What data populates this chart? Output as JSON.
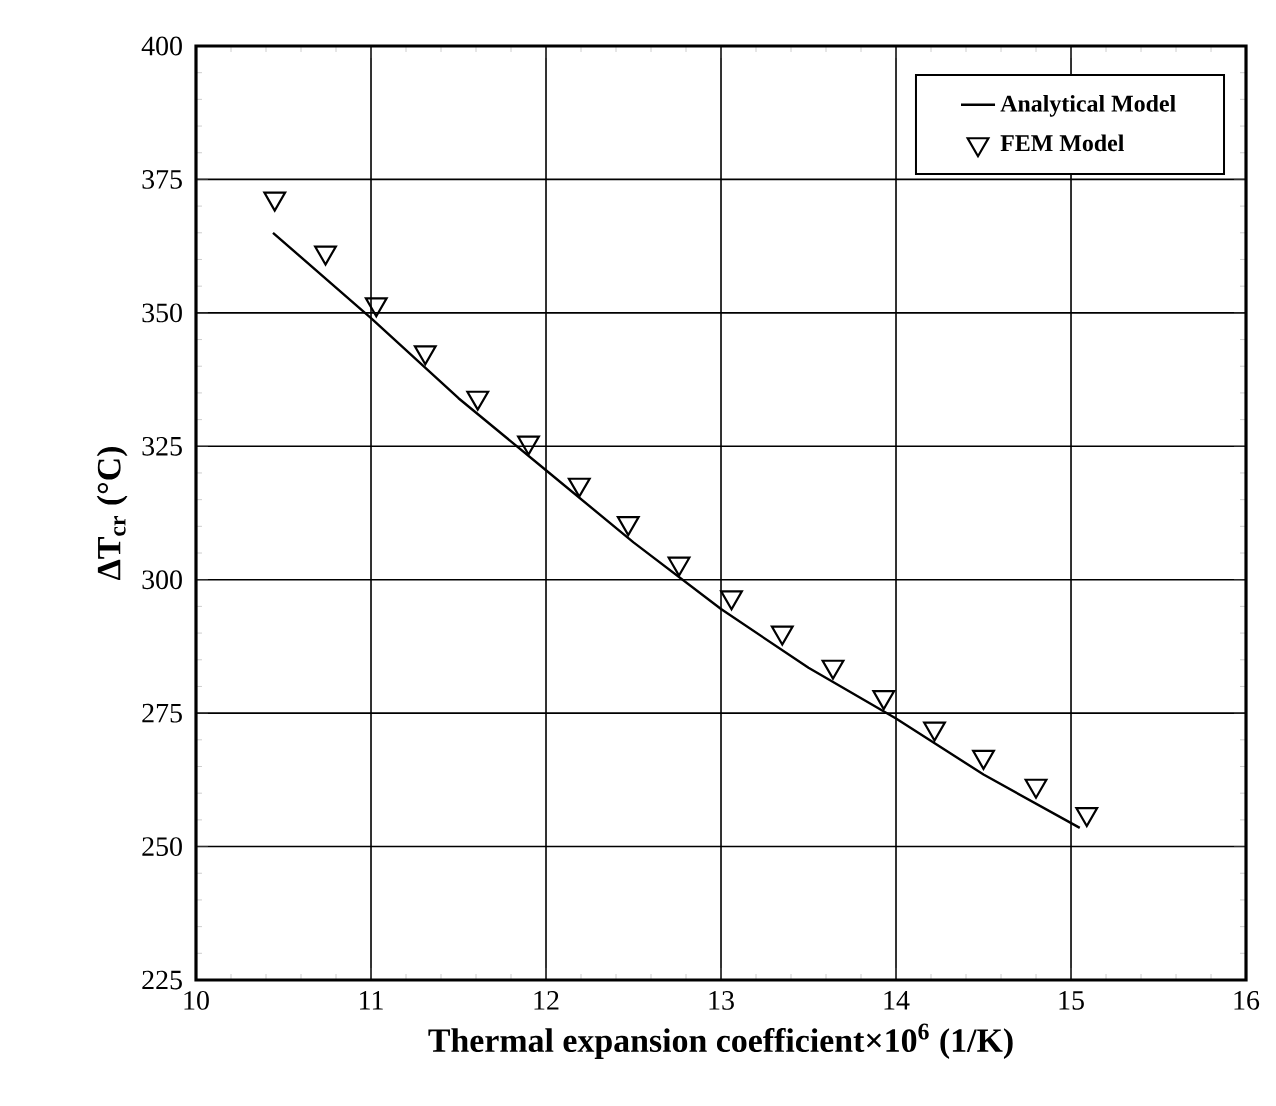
{
  "chart_data": {
    "type": "line",
    "xlabel": "Thermal expansion coefficient×10$^{6}$ (1/K)",
    "ylabel": "ΔT$_{cr}$ (°C)",
    "xlim": [
      10,
      16
    ],
    "ylim": [
      225,
      400
    ],
    "xticks": [
      10,
      11,
      12,
      13,
      14,
      15,
      16
    ],
    "yticks": [
      225,
      250,
      275,
      300,
      325,
      350,
      375,
      400
    ],
    "grid": true,
    "legend": "top right",
    "series": [
      {
        "name": "Analytical Model",
        "color": "#000000",
        "marker": "none",
        "line_style": "solid",
        "x": [
          10.44,
          11,
          11.5,
          12,
          12.5,
          13,
          13.5,
          14,
          14.5,
          15.05
        ],
        "values": [
          365,
          349,
          334,
          320.5,
          307,
          294.5,
          283.5,
          274,
          263.5,
          253.5
        ]
      },
      {
        "name": "FEM Model",
        "type": "scatter",
        "color": "#000000",
        "marker": "triangle",
        "x": [
          10.45,
          10.74,
          11.03,
          11.31,
          11.61,
          11.9,
          12.19,
          12.47,
          12.76,
          13.06,
          13.35,
          13.64,
          13.93,
          14.22,
          14.5,
          14.8,
          15.09
        ],
        "values": [
          371.4,
          361.3,
          351.6,
          342.6,
          334.1,
          325.7,
          317.8,
          310.6,
          303,
          296.7,
          290.1,
          283.7,
          278,
          272.1,
          266.8,
          261.4,
          256.1
        ]
      }
    ]
  }
}
